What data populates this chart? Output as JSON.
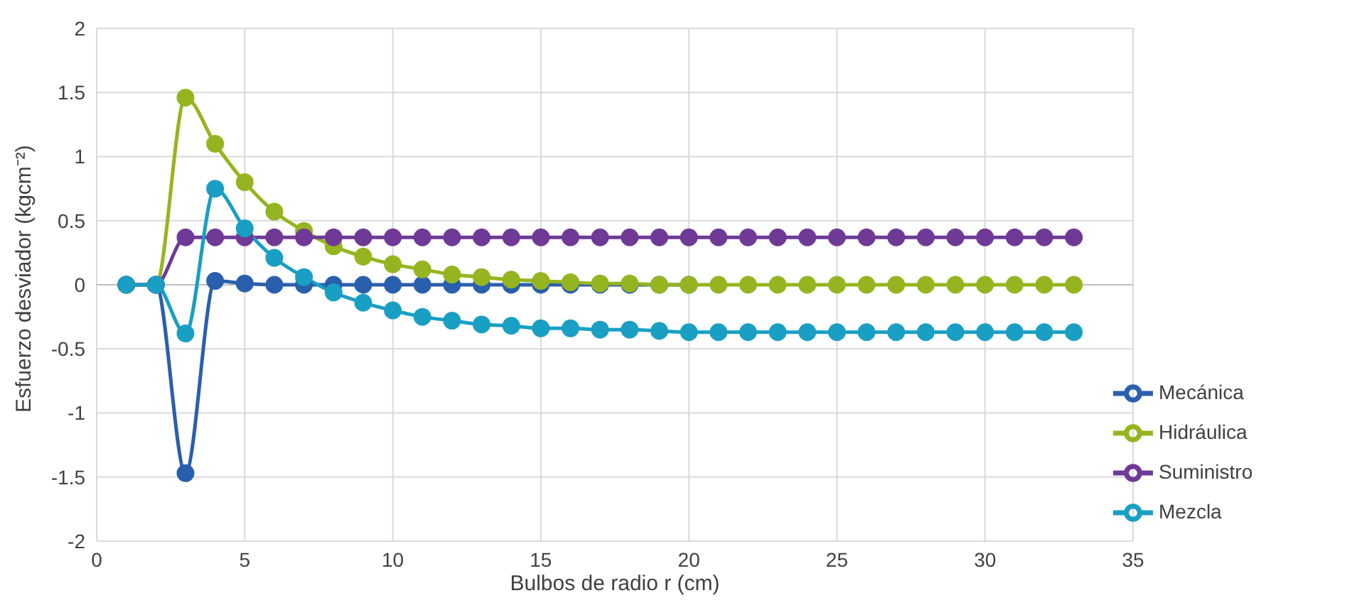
{
  "chart_data": {
    "type": "line",
    "xlabel": "Bulbos de radio r (cm)",
    "ylabel": "Esfuerzo desviador (kgcm⁻²)",
    "x": [
      1,
      2,
      3,
      4,
      5,
      6,
      7,
      8,
      9,
      10,
      11,
      12,
      13,
      14,
      15,
      16,
      17,
      18,
      19,
      20,
      21,
      22,
      23,
      24,
      25,
      26,
      27,
      28,
      29,
      30,
      31,
      32,
      33
    ],
    "series": [
      {
        "name": "Mecánica",
        "color": "#2a5fad",
        "values": [
          0,
          0,
          -1.47,
          0.03,
          0.01,
          0,
          0,
          0,
          0,
          0,
          0,
          0,
          0,
          0,
          0,
          0,
          0,
          0,
          0,
          0,
          null,
          null,
          null,
          null,
          null,
          null,
          null,
          null,
          null,
          null,
          null,
          null,
          null
        ]
      },
      {
        "name": "Hidráulica",
        "color": "#95b520",
        "values": [
          0,
          0,
          1.46,
          1.1,
          0.8,
          0.57,
          0.42,
          0.3,
          0.22,
          0.16,
          0.12,
          0.08,
          0.06,
          0.04,
          0.03,
          0.02,
          0.01,
          0.01,
          0,
          0,
          0,
          0,
          0,
          0,
          0,
          0,
          0,
          0,
          0,
          0,
          0,
          0,
          0
        ]
      },
      {
        "name": "Suministro",
        "color": "#6f3a96",
        "values": [
          0,
          0,
          0.37,
          0.37,
          0.37,
          0.37,
          0.37,
          0.37,
          0.37,
          0.37,
          0.37,
          0.37,
          0.37,
          0.37,
          0.37,
          0.37,
          0.37,
          0.37,
          0.37,
          0.37,
          0.37,
          0.37,
          0.37,
          0.37,
          0.37,
          0.37,
          0.37,
          0.37,
          0.37,
          0.37,
          0.37,
          0.37,
          0.37
        ]
      },
      {
        "name": "Mezcla",
        "color": "#1a9fc4",
        "values": [
          0,
          0,
          -0.38,
          0.75,
          0.44,
          0.21,
          0.06,
          -0.06,
          -0.14,
          -0.2,
          -0.25,
          -0.28,
          -0.31,
          -0.32,
          -0.34,
          -0.34,
          -0.35,
          -0.35,
          -0.36,
          -0.37,
          -0.37,
          -0.37,
          -0.37,
          -0.37,
          -0.37,
          -0.37,
          -0.37,
          -0.37,
          -0.37,
          -0.37,
          -0.37,
          -0.37,
          -0.37
        ]
      }
    ],
    "xlim": [
      0,
      35
    ],
    "xticks": [
      0,
      5,
      10,
      15,
      20,
      25,
      30,
      35
    ],
    "ylim": [
      -2,
      2
    ],
    "yticks": [
      -2,
      -1.5,
      -1,
      -0.5,
      0,
      0.5,
      1,
      1.5,
      2
    ],
    "grid": true,
    "legend": "right",
    "marker": "circle",
    "line_style": "solid"
  }
}
